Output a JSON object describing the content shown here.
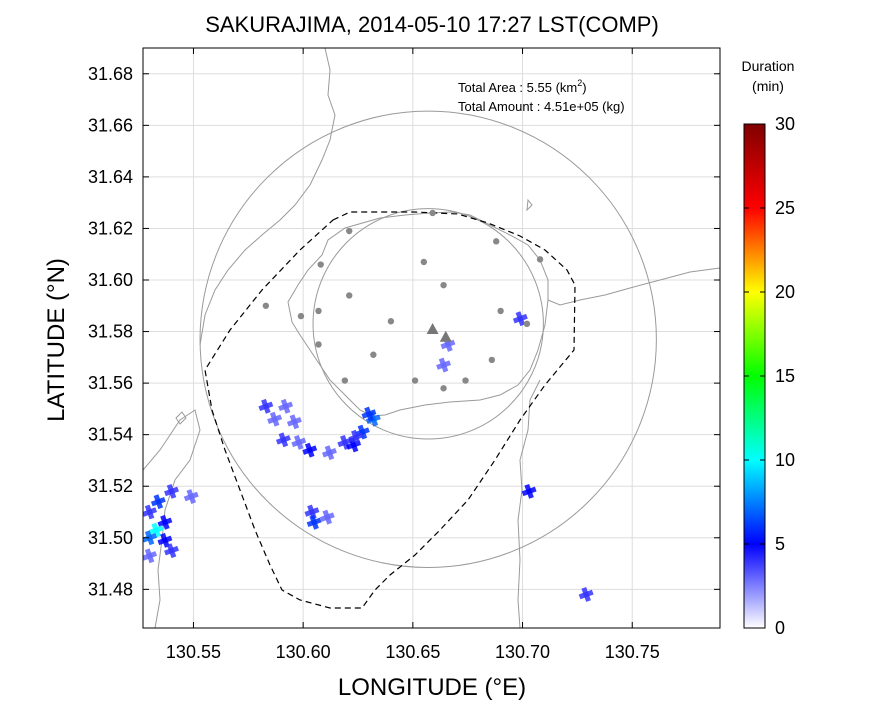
{
  "chart_data": {
    "type": "scatter",
    "title": "SAKURAJIMA, 2014-05-10 17:27 LST(COMP)",
    "xlabel": "LONGITUDE (°E)",
    "ylabel": "LATITUDE (°N)",
    "xlim": [
      130.527,
      130.79
    ],
    "ylim": [
      31.465,
      31.69
    ],
    "xticks": [
      130.55,
      130.6,
      130.65,
      130.7,
      130.75
    ],
    "xtick_labels": [
      "130.55",
      "130.60",
      "130.65",
      "130.70",
      "130.75"
    ],
    "yticks": [
      31.48,
      31.5,
      31.52,
      31.54,
      31.56,
      31.58,
      31.6,
      31.62,
      31.64,
      31.66,
      31.68
    ],
    "ytick_labels": [
      "31.48",
      "31.50",
      "31.52",
      "31.54",
      "31.56",
      "31.58",
      "31.60",
      "31.62",
      "31.64",
      "31.66",
      "31.68"
    ],
    "grid": true,
    "annotation_area": "Total Area   : 5.55 (km",
    "annotation_area_sup": "2",
    "annotation_area_end": ")",
    "annotation_amount": "Total Amount : 4.51e+05 (kg)",
    "colorbar": {
      "title_line1": "Duration",
      "title_line2": "(min)",
      "range": [
        0,
        30
      ],
      "ticks": [
        0,
        5,
        10,
        15,
        20,
        25,
        30
      ],
      "tick_labels": [
        "0",
        "5",
        "10",
        "15",
        "20",
        "25",
        "30"
      ],
      "colors": [
        "#ffffff",
        "#0000ff",
        "#00ffff",
        "#00ff00",
        "#ffff00",
        "#ff0000",
        "#800000"
      ]
    },
    "vent": [
      {
        "lon": 130.659,
        "lat": 31.581
      },
      {
        "lon": 130.665,
        "lat": 31.578
      }
    ],
    "stations": [
      {
        "lon": 130.659,
        "lat": 31.626
      },
      {
        "lon": 130.621,
        "lat": 31.619
      },
      {
        "lon": 130.688,
        "lat": 31.615
      },
      {
        "lon": 130.708,
        "lat": 31.608
      },
      {
        "lon": 130.655,
        "lat": 31.607
      },
      {
        "lon": 130.608,
        "lat": 31.606
      },
      {
        "lon": 130.664,
        "lat": 31.598
      },
      {
        "lon": 130.621,
        "lat": 31.594
      },
      {
        "lon": 130.583,
        "lat": 31.59
      },
      {
        "lon": 130.607,
        "lat": 31.588
      },
      {
        "lon": 130.69,
        "lat": 31.588
      },
      {
        "lon": 130.599,
        "lat": 31.586
      },
      {
        "lon": 130.64,
        "lat": 31.584
      },
      {
        "lon": 130.702,
        "lat": 31.583
      },
      {
        "lon": 130.607,
        "lat": 31.575
      },
      {
        "lon": 130.632,
        "lat": 31.571
      },
      {
        "lon": 130.686,
        "lat": 31.569
      },
      {
        "lon": 130.619,
        "lat": 31.561
      },
      {
        "lon": 130.651,
        "lat": 31.561
      },
      {
        "lon": 130.674,
        "lat": 31.561
      },
      {
        "lon": 130.664,
        "lat": 31.558
      }
    ],
    "range_rings": [
      {
        "lon": 130.657,
        "lat": 31.583,
        "radius_lon": 0.0525
      },
      {
        "lon": 130.657,
        "lat": 31.577,
        "radius_lon": 0.104
      },
      {
        "lon": 130.657,
        "lat": 31.576,
        "radius_lon": 0.19
      }
    ],
    "ashfall": [
      {
        "lon": 130.587,
        "lat": 31.546,
        "duration": 3
      },
      {
        "lon": 130.583,
        "lat": 31.551,
        "duration": 4
      },
      {
        "lon": 130.592,
        "lat": 31.551,
        "duration": 3
      },
      {
        "lon": 130.596,
        "lat": 31.545,
        "duration": 3
      },
      {
        "lon": 130.598,
        "lat": 31.537,
        "duration": 3
      },
      {
        "lon": 130.591,
        "lat": 31.538,
        "duration": 4
      },
      {
        "lon": 130.603,
        "lat": 31.534,
        "duration": 5
      },
      {
        "lon": 130.612,
        "lat": 31.533,
        "duration": 3
      },
      {
        "lon": 130.619,
        "lat": 31.537,
        "duration": 4
      },
      {
        "lon": 130.623,
        "lat": 31.536,
        "duration": 5
      },
      {
        "lon": 130.627,
        "lat": 31.541,
        "duration": 6
      },
      {
        "lon": 130.632,
        "lat": 31.546,
        "duration": 7
      },
      {
        "lon": 130.63,
        "lat": 31.548,
        "duration": 6
      },
      {
        "lon": 130.624,
        "lat": 31.539,
        "duration": 4
      },
      {
        "lon": 130.666,
        "lat": 31.575,
        "duration": 3
      },
      {
        "lon": 130.664,
        "lat": 31.567,
        "duration": 3
      },
      {
        "lon": 130.699,
        "lat": 31.585,
        "duration": 4
      },
      {
        "lon": 130.604,
        "lat": 31.51,
        "duration": 4
      },
      {
        "lon": 130.611,
        "lat": 31.508,
        "duration": 3
      },
      {
        "lon": 130.605,
        "lat": 31.506,
        "duration": 6
      },
      {
        "lon": 130.53,
        "lat": 31.51,
        "duration": 4
      },
      {
        "lon": 130.534,
        "lat": 31.514,
        "duration": 6
      },
      {
        "lon": 130.54,
        "lat": 31.518,
        "duration": 4
      },
      {
        "lon": 130.549,
        "lat": 31.516,
        "duration": 3
      },
      {
        "lon": 130.537,
        "lat": 31.506,
        "duration": 5
      },
      {
        "lon": 130.533,
        "lat": 31.503,
        "duration": 10
      },
      {
        "lon": 130.53,
        "lat": 31.5,
        "duration": 7
      },
      {
        "lon": 130.537,
        "lat": 31.499,
        "duration": 5
      },
      {
        "lon": 130.54,
        "lat": 31.495,
        "duration": 4
      },
      {
        "lon": 130.53,
        "lat": 31.493,
        "duration": 3
      },
      {
        "lon": 130.703,
        "lat": 31.518,
        "duration": 5
      },
      {
        "lon": 130.729,
        "lat": 31.478,
        "duration": 4
      }
    ]
  }
}
